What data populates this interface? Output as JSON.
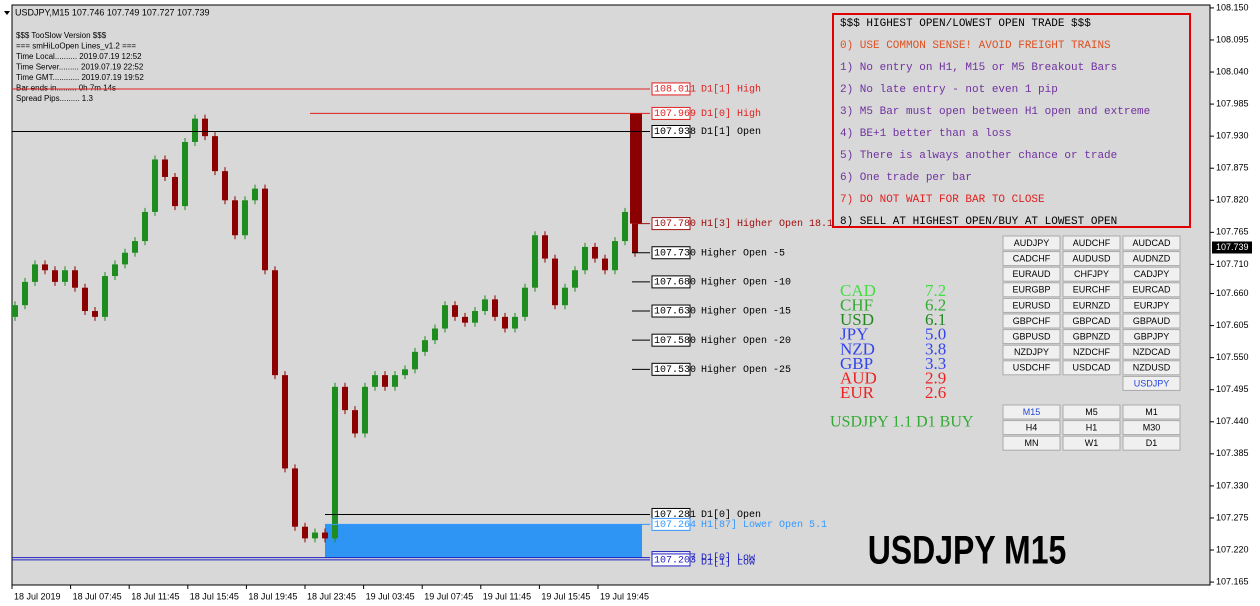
{
  "header": {
    "symbol_line": "USDJPY,M15  107.746 107.749 107.727 107.739"
  },
  "info": [
    "$$$ TooSlow Version $$$",
    "=== smHiLoOpen Lines_v1.2 ===",
    "Time Local.......... 2019.07.19 12:52",
    "Time Server......... 2019.07.19 22:52",
    "Time GMT............ 2019.07.19 19:52",
    "Bar ends in......... 0h 7m 14s",
    "Spread Pips......... 1.3"
  ],
  "chart_data": {
    "type": "candlestick",
    "up_color": "#1e8c1e",
    "down_color": "#8b0000",
    "first_open": 107.62,
    "closes": [
      107.64,
      107.68,
      107.71,
      107.7,
      107.68,
      107.7,
      107.67,
      107.63,
      107.62,
      107.69,
      107.71,
      107.73,
      107.75,
      107.8,
      107.89,
      107.86,
      107.81,
      107.92,
      107.96,
      107.93,
      107.87,
      107.82,
      107.76,
      107.82,
      107.84,
      107.7,
      107.52,
      107.36,
      107.26,
      107.24,
      107.25,
      107.24,
      107.5,
      107.46,
      107.42,
      107.5,
      107.52,
      107.5,
      107.52,
      107.53,
      107.56,
      107.58,
      107.6,
      107.64,
      107.62,
      107.61,
      107.63,
      107.65,
      107.62,
      107.6,
      107.62,
      107.67,
      107.76,
      107.72,
      107.64,
      107.67,
      107.7,
      107.74,
      107.72,
      107.7,
      107.75,
      107.8,
      107.73
    ],
    "ylim": [
      107.16,
      108.155
    ],
    "yticks": [
      {
        "value": 108.15,
        "label": "108.150"
      },
      {
        "value": 108.095,
        "label": "108.095"
      },
      {
        "value": 108.04,
        "label": "108.040"
      },
      {
        "value": 107.985,
        "label": "107.985"
      },
      {
        "value": 107.93,
        "label": "107.930"
      },
      {
        "value": 107.875,
        "label": "107.875"
      },
      {
        "value": 107.82,
        "label": "107.820"
      },
      {
        "value": 107.765,
        "label": "107.765"
      },
      {
        "value": 107.71,
        "label": "107.710"
      },
      {
        "value": 107.66,
        "label": "107.660"
      },
      {
        "value": 107.605,
        "label": "107.605"
      },
      {
        "value": 107.55,
        "label": "107.550"
      },
      {
        "value": 107.495,
        "label": "107.495"
      },
      {
        "value": 107.44,
        "label": "107.440"
      },
      {
        "value": 107.385,
        "label": "107.385"
      },
      {
        "value": 107.33,
        "label": "107.330"
      },
      {
        "value": 107.275,
        "label": "107.275"
      },
      {
        "value": 107.22,
        "label": "107.220"
      },
      {
        "value": 107.165,
        "label": "107.165"
      }
    ],
    "x_labels": [
      "18 Jul 2019",
      "18 Jul 07:45",
      "18 Jul 11:45",
      "18 Jul 15:45",
      "18 Jul 19:45",
      "18 Jul 23:45",
      "19 Jul 03:45",
      "19 Jul 07:45",
      "19 Jul 11:45",
      "19 Jul 15:45",
      "19 Jul 19:45"
    ],
    "current_price": {
      "value": 107.739,
      "label": "107.739"
    },
    "price_lines": [
      {
        "value": 108.011,
        "label": "108.011",
        "text": "D1[1] High",
        "color": "#e02020"
      },
      {
        "value": 107.969,
        "label": "107.969",
        "text": "D1[0] High",
        "color": "#e02020"
      },
      {
        "value": 107.938,
        "label": "107.938",
        "text": "D1[1] Open",
        "color": "#000000"
      },
      {
        "value": 107.78,
        "label": "107.780",
        "text": "H1[3] Higher Open 18.1",
        "color": "#a01010"
      },
      {
        "value": 107.73,
        "label": "107.730",
        "text": "Higher Open -5",
        "color": "#000000"
      },
      {
        "value": 107.68,
        "label": "107.680",
        "text": "Higher Open -10",
        "color": "#000000"
      },
      {
        "value": 107.63,
        "label": "107.630",
        "text": "Higher Open -15",
        "color": "#000000"
      },
      {
        "value": 107.58,
        "label": "107.580",
        "text": "Higher Open -20",
        "color": "#000000"
      },
      {
        "value": 107.53,
        "label": "107.530",
        "text": "Higher Open -25",
        "color": "#000000"
      },
      {
        "value": 107.281,
        "label": "107.281",
        "text": "D1[0] Open",
        "color": "#000000"
      },
      {
        "value": 107.264,
        "label": "107.264",
        "text": "H1[87] Lower Open 5.1",
        "color": "#3399ff"
      },
      {
        "value": 107.207,
        "label": "107.207",
        "text": "D1[0] Low",
        "color": "#2020c0"
      },
      {
        "value": 107.203,
        "label": "107.203",
        "text": "D1[1] Low",
        "color": "#2020c0"
      }
    ]
  },
  "rules": {
    "title": "$$$ HIGHEST OPEN/LOWEST OPEN TRADE $$$",
    "items": [
      {
        "text": "0) USE COMMON SENSE!  AVOID FREIGHT TRAINS",
        "color": "#e05020"
      },
      {
        "text": "1) No entry on H1, M15 or M5 Breakout Bars",
        "color": "#7030a0"
      },
      {
        "text": "2) No late entry - not even 1 pip",
        "color": "#7030a0"
      },
      {
        "text": "3) M5 Bar must open between H1 open and extreme",
        "color": "#7030a0"
      },
      {
        "text": "4) BE+1 better than a loss",
        "color": "#7030a0"
      },
      {
        "text": "5) There is always another chance or trade",
        "color": "#7030a0"
      },
      {
        "text": "6) One trade per bar",
        "color": "#7030a0"
      },
      {
        "text": "7) DO NOT WAIT FOR BAR TO CLOSE",
        "color": "#e02020"
      },
      {
        "text": "8) SELL AT HIGHEST OPEN/BUY AT LOWEST OPEN",
        "color": "#000000"
      }
    ]
  },
  "strength": [
    {
      "currency": "CAD",
      "value": 7.2,
      "color": "#44dd44"
    },
    {
      "currency": "CHF",
      "value": 6.2,
      "color": "#33aa33"
    },
    {
      "currency": "USD",
      "value": 6.1,
      "color": "#228822"
    },
    {
      "currency": "JPY",
      "value": 5.0,
      "value_label": "5.0",
      "color": "#3344ee"
    },
    {
      "currency": "NZD",
      "value": 3.8,
      "color": "#3344ee"
    },
    {
      "currency": "GBP",
      "value": 3.3,
      "color": "#3344ee"
    },
    {
      "currency": "AUD",
      "value": 2.9,
      "color": "#ee2222"
    },
    {
      "currency": "EUR",
      "value": 2.6,
      "color": "#ee2222"
    }
  ],
  "signal": "USDJPY 1.1 D1 BUY",
  "symbols": [
    "AUDJPY",
    "AUDCHF",
    "AUDCAD",
    "CADCHF",
    "AUDUSD",
    "AUDNZD",
    "EURAUD",
    "CHFJPY",
    "CADJPY",
    "EURGBP",
    "EURCHF",
    "EURCAD",
    "EURUSD",
    "EURNZD",
    "EURJPY",
    "GBPCHF",
    "GBPCAD",
    "GBPAUD",
    "GBPUSD",
    "GBPNZD",
    "GBPJPY",
    "NZDJPY",
    "NZDCHF",
    "NZDCAD",
    "USDCHF",
    "USDCAD",
    "NZDUSD",
    "USDJPY"
  ],
  "timeframes": [
    "M15",
    "M5",
    "M1",
    "H4",
    "H1",
    "M30",
    "MN",
    "W1",
    "D1"
  ],
  "watermark": "USDJPY M15"
}
